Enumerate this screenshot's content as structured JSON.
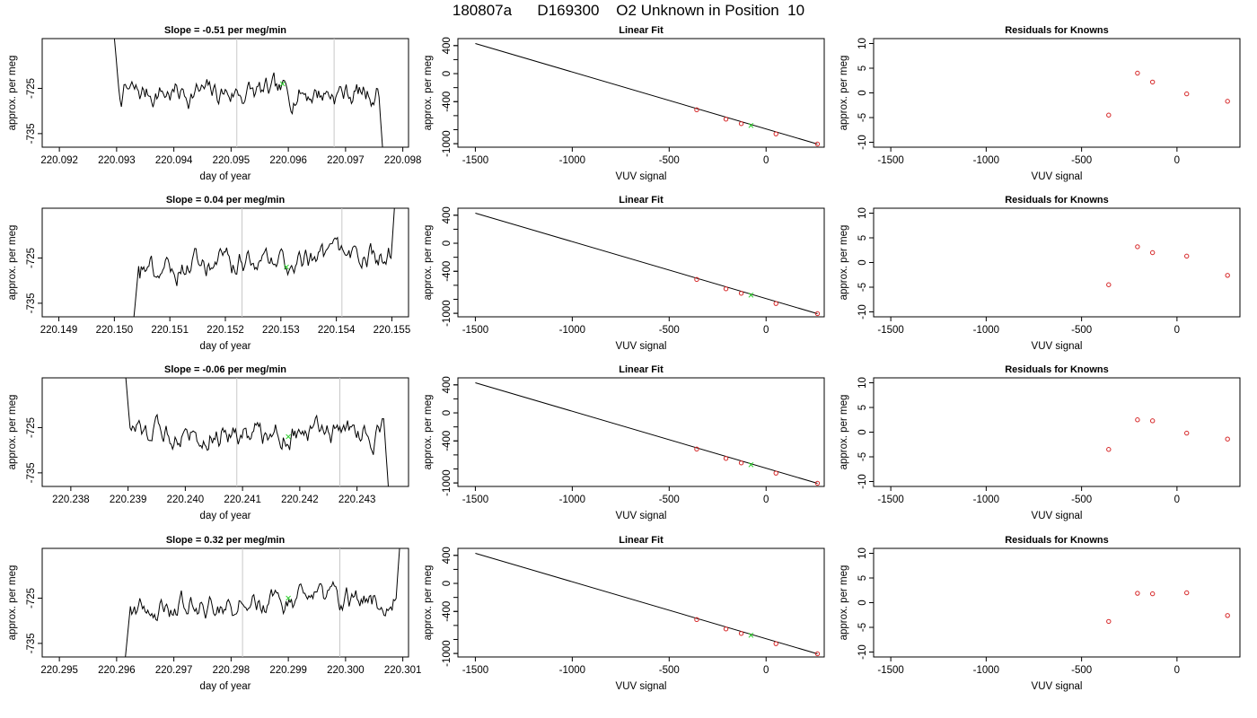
{
  "page": {
    "title": "180807a      D169300    O2 Unknown in Position  10"
  },
  "colors": {
    "series": "#000000",
    "known_points": "#d62728",
    "unknown_point": "#22cc22",
    "marker_lines": "#c8c8c8"
  },
  "chart_data": [
    {
      "type": "line",
      "row": 1,
      "panel": "time-series",
      "title": "Slope =  -0.51  per meg/min",
      "xlabel": "day of year",
      "ylabel": "approx. per meg",
      "xlim": [
        220.0917,
        220.0981
      ],
      "ylim": [
        -738,
        -714
      ],
      "xticks": [
        "220.092",
        "220.093",
        "220.094",
        "220.095",
        "220.096",
        "220.097",
        "220.098"
      ],
      "yticks": [
        "-725",
        "-735"
      ],
      "trace_start": 220.0929,
      "trace_end": 220.0977,
      "marker_lines_x": [
        220.0951,
        220.0968
      ],
      "unknown_point": {
        "x": 220.0959,
        "y": -724
      }
    },
    {
      "type": "scatter",
      "row": 1,
      "panel": "linear-fit",
      "title": "Linear Fit",
      "xlabel": "VUV signal",
      "ylabel": "approx. per meg",
      "xlim": [
        -1590,
        300
      ],
      "ylim": [
        -1050,
        500
      ],
      "xticks": [
        "-1500",
        "-1000",
        "-500",
        "0"
      ],
      "yticks": [
        "400",
        "0",
        "-400",
        "-1000"
      ],
      "fit_line": {
        "x": [
          -1500,
          265
        ],
        "y": [
          430,
          -1005
        ]
      },
      "knowns": {
        "x": [
          -358,
          -207,
          -128,
          51,
          265
        ],
        "y": [
          -516,
          -650,
          -714,
          -860,
          -1005
        ]
      },
      "unknown": {
        "x": -78,
        "y": -740
      }
    },
    {
      "type": "scatter",
      "row": 1,
      "panel": "residuals",
      "title": "Residuals for Knowns",
      "xlabel": "VUV signal",
      "ylabel": "approx. per meg",
      "xlim": [
        -1590,
        330
      ],
      "ylim": [
        -11,
        11
      ],
      "xticks": [
        "-1500",
        "-1000",
        "-500",
        "0"
      ],
      "yticks": [
        "10",
        "5",
        "0",
        "-5",
        "-10"
      ],
      "knowns": {
        "x": [
          -358,
          -207,
          -128,
          51,
          265
        ],
        "y": [
          -4.5,
          4.0,
          2.2,
          -0.2,
          -1.7
        ]
      }
    },
    {
      "type": "line",
      "row": 2,
      "panel": "time-series",
      "title": "Slope =  0.04  per meg/min",
      "xlabel": "day of year",
      "ylabel": "approx. per meg",
      "xlim": [
        220.1487,
        220.1553
      ],
      "ylim": [
        -738,
        -714
      ],
      "xticks": [
        "220.149",
        "220.150",
        "220.151",
        "220.152",
        "220.153",
        "220.154",
        "220.155"
      ],
      "yticks": [
        "-725",
        "-735"
      ],
      "trace_start": 220.1503,
      "trace_end": 220.1551,
      "marker_lines_x": [
        220.1523,
        220.1541
      ],
      "unknown_point": {
        "x": 220.1531,
        "y": -727
      }
    },
    {
      "type": "scatter",
      "row": 2,
      "panel": "linear-fit",
      "title": "Linear Fit",
      "xlabel": "VUV signal",
      "ylabel": "approx. per meg",
      "xlim": [
        -1590,
        300
      ],
      "ylim": [
        -1050,
        500
      ],
      "xticks": [
        "-1500",
        "-1000",
        "-500",
        "0"
      ],
      "yticks": [
        "400",
        "0",
        "-400",
        "-1000"
      ],
      "fit_line": {
        "x": [
          -1500,
          265
        ],
        "y": [
          430,
          -1005
        ]
      },
      "knowns": {
        "x": [
          -358,
          -207,
          -128,
          51,
          265
        ],
        "y": [
          -516,
          -650,
          -714,
          -860,
          -1005
        ]
      },
      "unknown": {
        "x": -78,
        "y": -740
      }
    },
    {
      "type": "scatter",
      "row": 2,
      "panel": "residuals",
      "title": "Residuals for Knowns",
      "xlabel": "VUV signal",
      "ylabel": "approx. per meg",
      "xlim": [
        -1590,
        330
      ],
      "ylim": [
        -11,
        11
      ],
      "xticks": [
        "-1500",
        "-1000",
        "-500",
        "0"
      ],
      "yticks": [
        "10",
        "5",
        "0",
        "-5",
        "-10"
      ],
      "knowns": {
        "x": [
          -358,
          -207,
          -128,
          51,
          265
        ],
        "y": [
          -4.5,
          3.2,
          2.0,
          1.3,
          -2.6
        ]
      }
    },
    {
      "type": "line",
      "row": 3,
      "panel": "time-series",
      "title": "Slope =  -0.06  per meg/min",
      "xlabel": "day of year",
      "ylabel": "approx. per meg",
      "xlim": [
        220.2375,
        220.2439
      ],
      "ylim": [
        -738,
        -714
      ],
      "xticks": [
        "220.238",
        "220.239",
        "220.240",
        "220.241",
        "220.242",
        "220.243"
      ],
      "yticks": [
        "-725",
        "-735"
      ],
      "trace_start": 220.2389,
      "trace_end": 220.2436,
      "marker_lines_x": [
        220.2409,
        220.2427
      ],
      "unknown_point": {
        "x": 220.2418,
        "y": -727
      }
    },
    {
      "type": "scatter",
      "row": 3,
      "panel": "linear-fit",
      "title": "Linear Fit",
      "xlabel": "VUV signal",
      "ylabel": "approx. per meg",
      "xlim": [
        -1590,
        300
      ],
      "ylim": [
        -1050,
        500
      ],
      "xticks": [
        "-1500",
        "-1000",
        "-500",
        "0"
      ],
      "yticks": [
        "400",
        "0",
        "-400",
        "-1000"
      ],
      "fit_line": {
        "x": [
          -1500,
          265
        ],
        "y": [
          430,
          -1005
        ]
      },
      "knowns": {
        "x": [
          -358,
          -207,
          -128,
          51,
          265
        ],
        "y": [
          -516,
          -650,
          -714,
          -860,
          -1005
        ]
      },
      "unknown": {
        "x": -78,
        "y": -740
      }
    },
    {
      "type": "scatter",
      "row": 3,
      "panel": "residuals",
      "title": "Residuals for Knowns",
      "xlabel": "VUV signal",
      "ylabel": "approx. per meg",
      "xlim": [
        -1590,
        330
      ],
      "ylim": [
        -11,
        11
      ],
      "xticks": [
        "-1500",
        "-1000",
        "-500",
        "0"
      ],
      "yticks": [
        "10",
        "5",
        "0",
        "-5",
        "-10"
      ],
      "knowns": {
        "x": [
          -358,
          -207,
          -128,
          51,
          265
        ],
        "y": [
          -3.5,
          2.5,
          2.3,
          -0.2,
          -1.4
        ]
      }
    },
    {
      "type": "line",
      "row": 4,
      "panel": "time-series",
      "title": "Slope =  0.32  per meg/min",
      "xlabel": "day of year",
      "ylabel": "approx. per meg",
      "xlim": [
        220.2947,
        220.3011
      ],
      "ylim": [
        -738,
        -714
      ],
      "xticks": [
        "220.295",
        "220.296",
        "220.297",
        "220.298",
        "220.299",
        "220.300",
        "220.301"
      ],
      "yticks": [
        "-725",
        "-735"
      ],
      "trace_start": 220.2961,
      "trace_end": 220.301,
      "marker_lines_x": [
        220.2982,
        220.2999
      ],
      "unknown_point": {
        "x": 220.299,
        "y": -725
      }
    },
    {
      "type": "scatter",
      "row": 4,
      "panel": "linear-fit",
      "title": "Linear Fit",
      "xlabel": "VUV signal",
      "ylabel": "approx. per meg",
      "xlim": [
        -1590,
        300
      ],
      "ylim": [
        -1050,
        500
      ],
      "xticks": [
        "-1500",
        "-1000",
        "-500",
        "0"
      ],
      "yticks": [
        "400",
        "0",
        "-400",
        "-1000"
      ],
      "fit_line": {
        "x": [
          -1500,
          265
        ],
        "y": [
          430,
          -1005
        ]
      },
      "knowns": {
        "x": [
          -358,
          -207,
          -128,
          51,
          265
        ],
        "y": [
          -516,
          -650,
          -714,
          -860,
          -1005
        ]
      },
      "unknown": {
        "x": -78,
        "y": -740
      }
    },
    {
      "type": "scatter",
      "row": 4,
      "panel": "residuals",
      "title": "Residuals for Knowns",
      "xlabel": "VUV signal",
      "ylabel": "approx. per meg",
      "xlim": [
        -1590,
        330
      ],
      "ylim": [
        -11,
        11
      ],
      "xticks": [
        "-1500",
        "-1000",
        "-500",
        "0"
      ],
      "yticks": [
        "10",
        "5",
        "0",
        "-5",
        "-10"
      ],
      "knowns": {
        "x": [
          -358,
          -207,
          -128,
          51,
          265
        ],
        "y": [
          -3.8,
          1.9,
          1.8,
          2.0,
          -2.6
        ]
      }
    }
  ]
}
